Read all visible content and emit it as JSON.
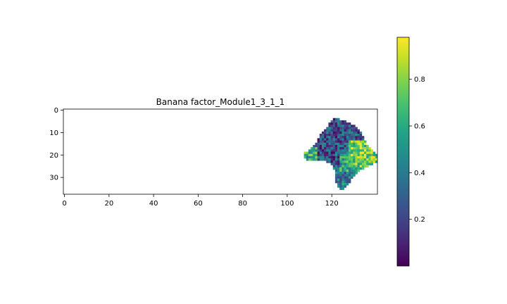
{
  "chart_data": {
    "type": "heatmap",
    "title": "Banana factor_Module1_3_1_1",
    "xlabel": "",
    "ylabel": "",
    "x_ticks": [
      0,
      20,
      40,
      60,
      80,
      100,
      120
    ],
    "y_ticks": [
      0,
      10,
      20,
      30
    ],
    "xlim": [
      -0.5,
      140.5
    ],
    "ylim": [
      37.5,
      -0.5
    ],
    "grid": false,
    "colormap": "viridis",
    "colorbar": {
      "vmin": 0.0,
      "vmax": 0.98,
      "ticks": [
        0.2,
        0.4,
        0.6,
        0.8
      ]
    },
    "masked_background": "#ffffff",
    "region": {
      "description_rows": [
        {
          "row": 4,
          "col_start": 121,
          "col_end": 123
        },
        {
          "row": 5,
          "col_start": 120,
          "col_end": 126
        },
        {
          "row": 6,
          "col_start": 119,
          "col_end": 128
        },
        {
          "row": 7,
          "col_start": 119,
          "col_end": 130
        },
        {
          "row": 8,
          "col_start": 118,
          "col_end": 131
        },
        {
          "row": 9,
          "col_start": 117,
          "col_end": 132
        },
        {
          "row": 10,
          "col_start": 116,
          "col_end": 133
        },
        {
          "row": 11,
          "col_start": 115,
          "col_end": 133
        },
        {
          "row": 12,
          "col_start": 115,
          "col_end": 134
        },
        {
          "row": 13,
          "col_start": 114,
          "col_end": 134
        },
        {
          "row": 14,
          "col_start": 114,
          "col_end": 135
        },
        {
          "row": 15,
          "col_start": 113,
          "col_end": 135
        },
        {
          "row": 16,
          "col_start": 112,
          "col_end": 136
        },
        {
          "row": 17,
          "col_start": 111,
          "col_end": 137
        },
        {
          "row": 18,
          "col_start": 110,
          "col_end": 138
        },
        {
          "row": 19,
          "col_start": 108,
          "col_end": 139
        },
        {
          "row": 20,
          "col_start": 108,
          "col_end": 140
        },
        {
          "row": 21,
          "col_start": 108,
          "col_end": 140
        },
        {
          "row": 22,
          "col_start": 109,
          "col_end": 140
        },
        {
          "row": 23,
          "col_start": 118,
          "col_end": 140
        },
        {
          "row": 24,
          "col_start": 120,
          "col_end": 138
        },
        {
          "row": 25,
          "col_start": 121,
          "col_end": 136
        },
        {
          "row": 26,
          "col_start": 121,
          "col_end": 134
        },
        {
          "row": 27,
          "col_start": 122,
          "col_end": 132
        },
        {
          "row": 28,
          "col_start": 122,
          "col_end": 131
        },
        {
          "row": 29,
          "col_start": 122,
          "col_end": 130
        },
        {
          "row": 30,
          "col_start": 122,
          "col_end": 129
        },
        {
          "row": 31,
          "col_start": 122,
          "col_end": 128
        },
        {
          "row": 32,
          "col_start": 122,
          "col_end": 128
        },
        {
          "row": 33,
          "col_start": 123,
          "col_end": 127
        },
        {
          "row": 34,
          "col_start": 123,
          "col_end": 126
        },
        {
          "row": 35,
          "col_start": 124,
          "col_end": 125
        }
      ],
      "value_range": [
        0.0,
        0.98
      ],
      "high_values_area": "right-middle (cols ~128-140, rows ~14-25) mostly 0.7-0.95",
      "low_values_area": "left-center and top (cols ~110-127, rows ~5-22) mostly 0.05-0.4"
    }
  }
}
